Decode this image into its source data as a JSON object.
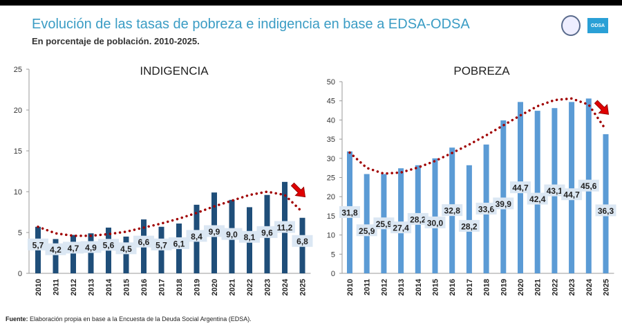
{
  "header": {
    "title": "Evolución de las tasas de pobreza e indigencia en base a EDSA-ODSA",
    "subtitle": "En porcentaje de población. 2010-2025.",
    "logo_text": "ODSA"
  },
  "footer": {
    "label": "Fuente:",
    "text": " Elaboración propia en base a la Encuesta de la Deuda Social Argentina (EDSA)."
  },
  "colors": {
    "indigencia_bar": "#1f4e79",
    "pobreza_bar": "#5b9bd5",
    "trend": "#a00000",
    "arrow": "#e00000",
    "label_bg": "#dbe7f3"
  },
  "chart_data": [
    {
      "type": "bar",
      "title": "INDIGENCIA",
      "categories": [
        "2010",
        "2011",
        "2012",
        "2013",
        "2014",
        "2015",
        "2016",
        "2017",
        "2018",
        "2019",
        "2020",
        "2021",
        "2022",
        "2023",
        "2024",
        "2025"
      ],
      "values": [
        5.7,
        4.2,
        4.7,
        4.9,
        5.6,
        4.5,
        6.6,
        5.7,
        6.1,
        8.4,
        9.9,
        9.0,
        8.1,
        9.6,
        11.2,
        6.8
      ],
      "data_labels": [
        "5,7",
        "4,2",
        "4,7",
        "4,9",
        "5,6",
        "4,5",
        "6,6",
        "5,7",
        "6,1",
        "8,4",
        "9,9",
        "9,0",
        "8,1",
        "9,6",
        "11,2",
        "6,8"
      ],
      "ylim": [
        0,
        25
      ],
      "yticks": [
        "0",
        "5",
        "10",
        "15",
        "20",
        "25"
      ],
      "trendline": "polynomial (dotted)",
      "grid": false
    },
    {
      "type": "bar",
      "title": "POBREZA",
      "categories": [
        "2010",
        "2011",
        "2012",
        "2013",
        "2014",
        "2015",
        "2016",
        "2017",
        "2018",
        "2019",
        "2020",
        "2021",
        "2022",
        "2023",
        "2024",
        "2025"
      ],
      "values": [
        31.8,
        25.9,
        25.9,
        27.4,
        28.2,
        30.0,
        32.8,
        28.2,
        33.6,
        39.9,
        44.7,
        42.4,
        43.1,
        44.7,
        45.6,
        36.3
      ],
      "data_labels": [
        "31,8",
        "25,9",
        "25,9",
        "27,4",
        "28,2",
        "30,0",
        "32,8",
        "28,2",
        "33,6",
        "39,9",
        "44,7",
        "42,4",
        "43,1",
        "44,7",
        "45,6",
        "36,3"
      ],
      "ylim": [
        0,
        50
      ],
      "yticks": [
        "0",
        "5",
        "10",
        "15",
        "20",
        "25",
        "30",
        "35",
        "40",
        "45",
        "50"
      ],
      "trendline": "polynomial (dotted)",
      "grid": false
    }
  ]
}
